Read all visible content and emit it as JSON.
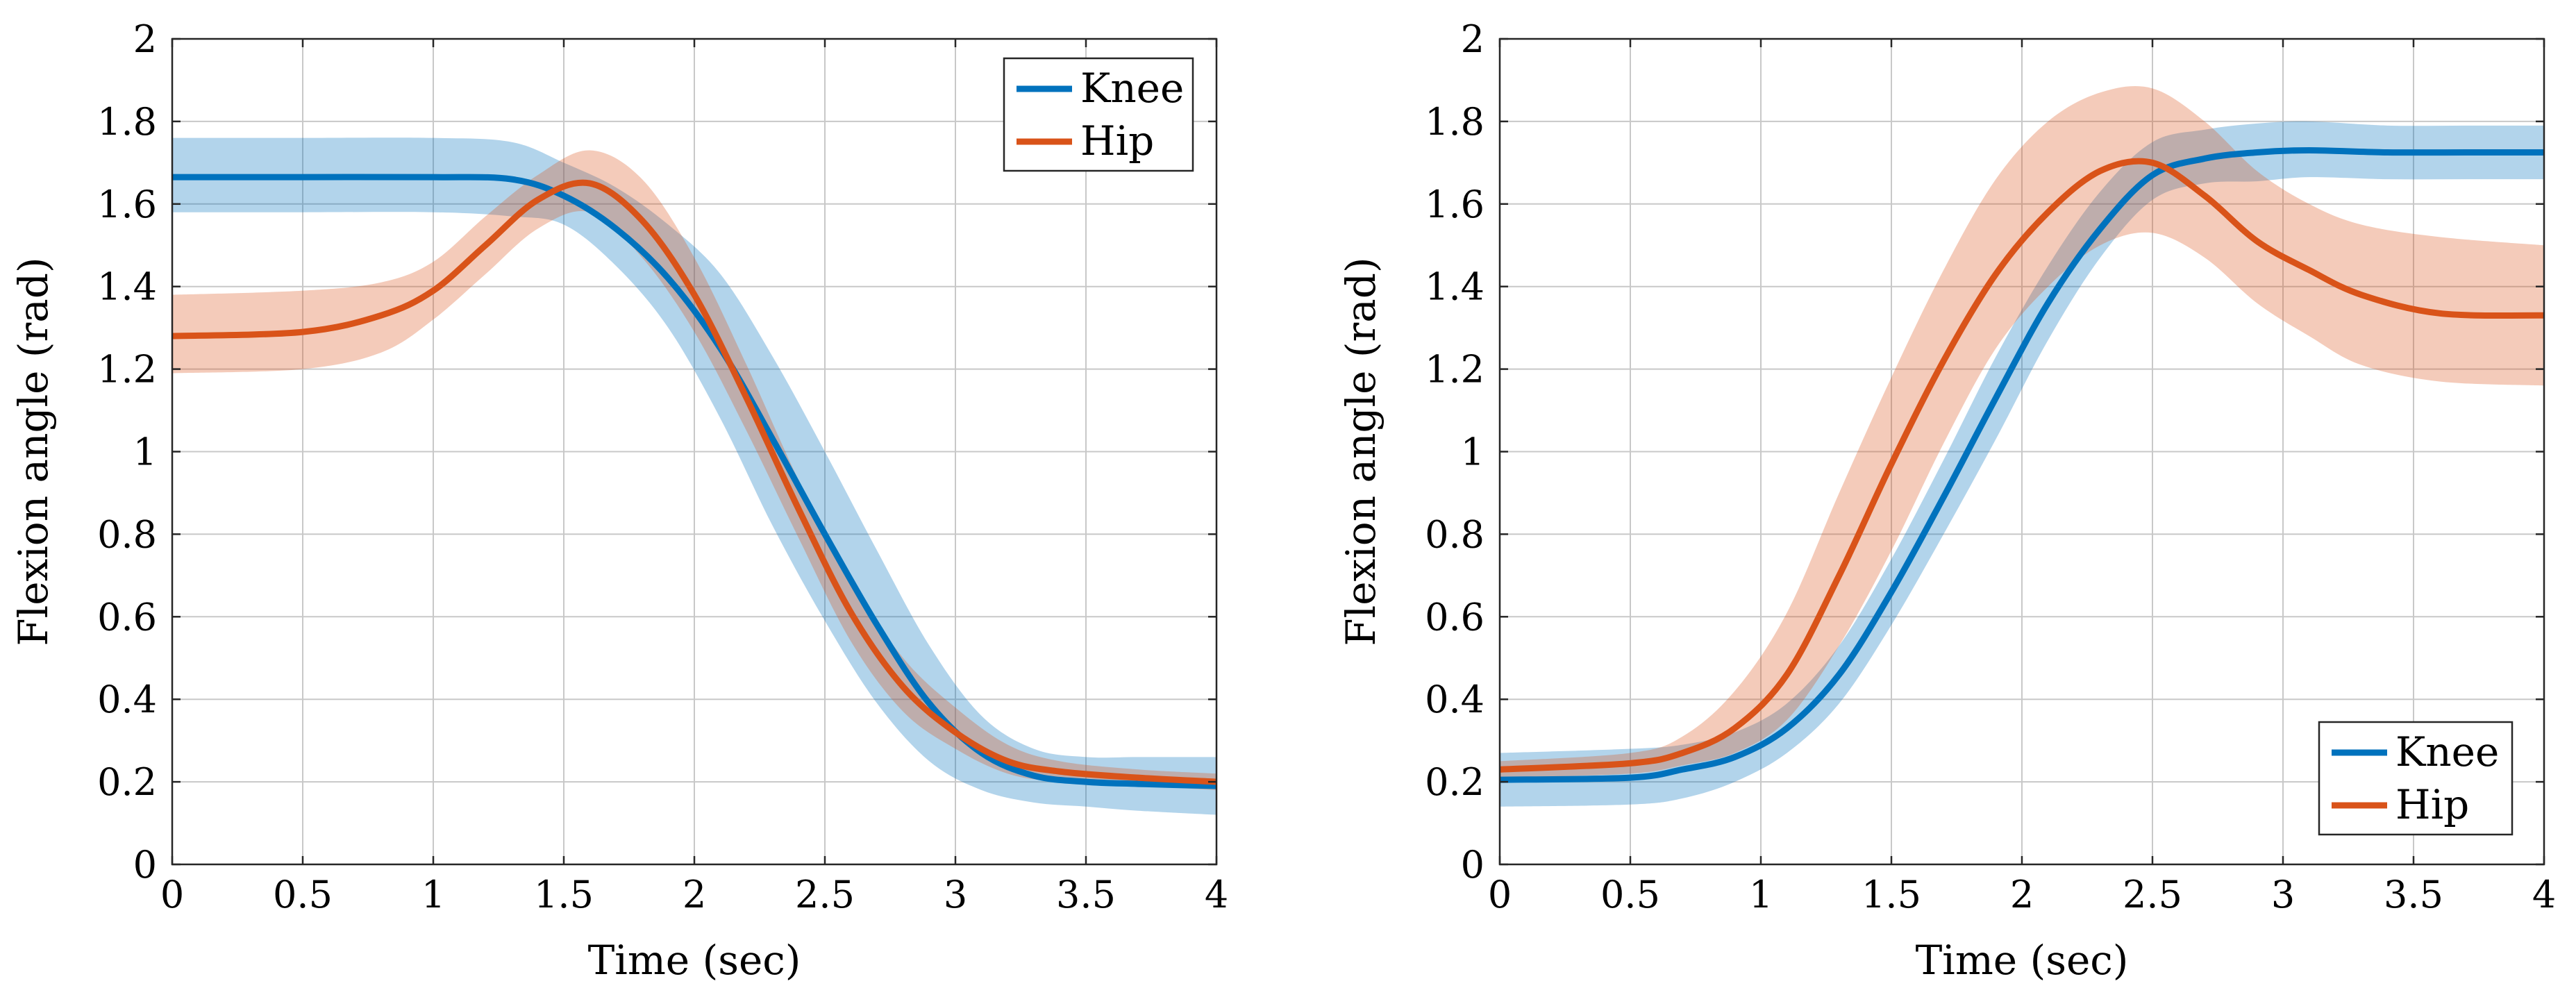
{
  "colors": {
    "knee": "#0072BD",
    "hip": "#D95319",
    "knee_band": "#0072BD",
    "hip_band": "#D95319",
    "grid": "#c8c8c8",
    "axis": "#262626"
  },
  "chart_data": [
    {
      "type": "line",
      "title": "",
      "xlabel": "Time (sec)",
      "ylabel": "Flexion angle (rad)",
      "xlim": [
        0,
        4
      ],
      "ylim": [
        0,
        2
      ],
      "xticks": [
        0,
        0.5,
        1,
        1.5,
        2,
        2.5,
        3,
        3.5,
        4
      ],
      "xtick_labels": [
        "0",
        "0.5",
        "1",
        "1.5",
        "2",
        "2.5",
        "3",
        "3.5",
        "4"
      ],
      "yticks": [
        0,
        0.2,
        0.4,
        0.6,
        0.8,
        1,
        1.2,
        1.4,
        1.6,
        1.8,
        2
      ],
      "ytick_labels": [
        "0",
        "0.2",
        "0.4",
        "0.6",
        "0.8",
        "1",
        "1.2",
        "1.4",
        "1.6",
        "1.8",
        "2"
      ],
      "grid": true,
      "legend_position": "top-right",
      "series": [
        {
          "name": "Knee",
          "color_key": "knee",
          "x": [
            0,
            0.5,
            1.0,
            1.3,
            1.5,
            1.7,
            1.9,
            2.1,
            2.3,
            2.5,
            2.7,
            2.9,
            3.1,
            3.3,
            3.5,
            3.7,
            4.0
          ],
          "mean": [
            1.665,
            1.665,
            1.665,
            1.66,
            1.62,
            1.54,
            1.42,
            1.25,
            1.03,
            0.8,
            0.58,
            0.39,
            0.27,
            0.215,
            0.2,
            0.195,
            0.19
          ],
          "upper": [
            1.76,
            1.76,
            1.76,
            1.75,
            1.7,
            1.64,
            1.55,
            1.43,
            1.23,
            1.0,
            0.76,
            0.53,
            0.36,
            0.28,
            0.26,
            0.26,
            0.26
          ],
          "lower": [
            1.58,
            1.58,
            1.58,
            1.57,
            1.55,
            1.45,
            1.3,
            1.08,
            0.82,
            0.59,
            0.39,
            0.25,
            0.18,
            0.15,
            0.14,
            0.13,
            0.12
          ]
        },
        {
          "name": "Hip",
          "color_key": "hip",
          "x": [
            0,
            0.5,
            0.8,
            1.0,
            1.2,
            1.4,
            1.6,
            1.8,
            2.0,
            2.2,
            2.4,
            2.6,
            2.8,
            3.0,
            3.2,
            3.4,
            3.7,
            4.0
          ],
          "mean": [
            1.28,
            1.29,
            1.33,
            1.39,
            1.5,
            1.61,
            1.65,
            1.56,
            1.38,
            1.13,
            0.86,
            0.61,
            0.43,
            0.32,
            0.25,
            0.225,
            0.21,
            0.2
          ],
          "upper": [
            1.38,
            1.39,
            1.41,
            1.46,
            1.57,
            1.67,
            1.73,
            1.66,
            1.47,
            1.21,
            0.93,
            0.69,
            0.5,
            0.38,
            0.29,
            0.25,
            0.23,
            0.22
          ],
          "lower": [
            1.19,
            1.2,
            1.24,
            1.32,
            1.43,
            1.54,
            1.58,
            1.47,
            1.29,
            1.05,
            0.79,
            0.54,
            0.37,
            0.28,
            0.22,
            0.2,
            0.19,
            0.18
          ]
        }
      ]
    },
    {
      "type": "line",
      "title": "",
      "xlabel": "Time (sec)",
      "ylabel": "Flexion angle (rad)",
      "xlim": [
        0,
        4
      ],
      "ylim": [
        0,
        2
      ],
      "xticks": [
        0,
        0.5,
        1,
        1.5,
        2,
        2.5,
        3,
        3.5,
        4
      ],
      "xtick_labels": [
        "0",
        "0.5",
        "1",
        "1.5",
        "2",
        "2.5",
        "3",
        "3.5",
        "4"
      ],
      "yticks": [
        0,
        0.2,
        0.4,
        0.6,
        0.8,
        1,
        1.2,
        1.4,
        1.6,
        1.8,
        2
      ],
      "ytick_labels": [
        "0",
        "0.2",
        "0.4",
        "0.6",
        "0.8",
        "1",
        "1.2",
        "1.4",
        "1.6",
        "1.8",
        "2"
      ],
      "grid": true,
      "legend_position": "bottom-right",
      "series": [
        {
          "name": "Knee",
          "color_key": "knee",
          "x": [
            0,
            0.5,
            0.7,
            0.9,
            1.1,
            1.3,
            1.5,
            1.7,
            1.9,
            2.1,
            2.3,
            2.5,
            2.7,
            2.9,
            3.1,
            3.4,
            3.7,
            4.0
          ],
          "mean": [
            0.205,
            0.21,
            0.23,
            0.26,
            0.33,
            0.46,
            0.66,
            0.89,
            1.13,
            1.36,
            1.54,
            1.67,
            1.71,
            1.725,
            1.73,
            1.725,
            1.725,
            1.725
          ],
          "upper": [
            0.27,
            0.28,
            0.29,
            0.32,
            0.39,
            0.53,
            0.74,
            0.98,
            1.23,
            1.45,
            1.63,
            1.75,
            1.78,
            1.795,
            1.8,
            1.79,
            1.79,
            1.79
          ],
          "lower": [
            0.14,
            0.145,
            0.16,
            0.2,
            0.27,
            0.39,
            0.58,
            0.8,
            1.03,
            1.27,
            1.47,
            1.61,
            1.65,
            1.655,
            1.665,
            1.66,
            1.66,
            1.66
          ]
        },
        {
          "name": "Hip",
          "color_key": "hip",
          "x": [
            0,
            0.5,
            0.7,
            0.9,
            1.1,
            1.3,
            1.5,
            1.7,
            1.9,
            2.1,
            2.3,
            2.5,
            2.7,
            2.9,
            3.1,
            3.3,
            3.6,
            4.0
          ],
          "mean": [
            0.23,
            0.245,
            0.27,
            0.33,
            0.46,
            0.7,
            0.97,
            1.22,
            1.43,
            1.58,
            1.68,
            1.7,
            1.62,
            1.51,
            1.44,
            1.38,
            1.335,
            1.33
          ],
          "upper": [
            0.25,
            0.27,
            0.31,
            0.42,
            0.61,
            0.9,
            1.18,
            1.44,
            1.66,
            1.8,
            1.87,
            1.88,
            1.8,
            1.68,
            1.6,
            1.55,
            1.52,
            1.5
          ],
          "lower": [
            0.21,
            0.22,
            0.24,
            0.27,
            0.35,
            0.53,
            0.76,
            1.02,
            1.25,
            1.4,
            1.5,
            1.53,
            1.47,
            1.36,
            1.28,
            1.21,
            1.17,
            1.16
          ]
        }
      ]
    }
  ]
}
